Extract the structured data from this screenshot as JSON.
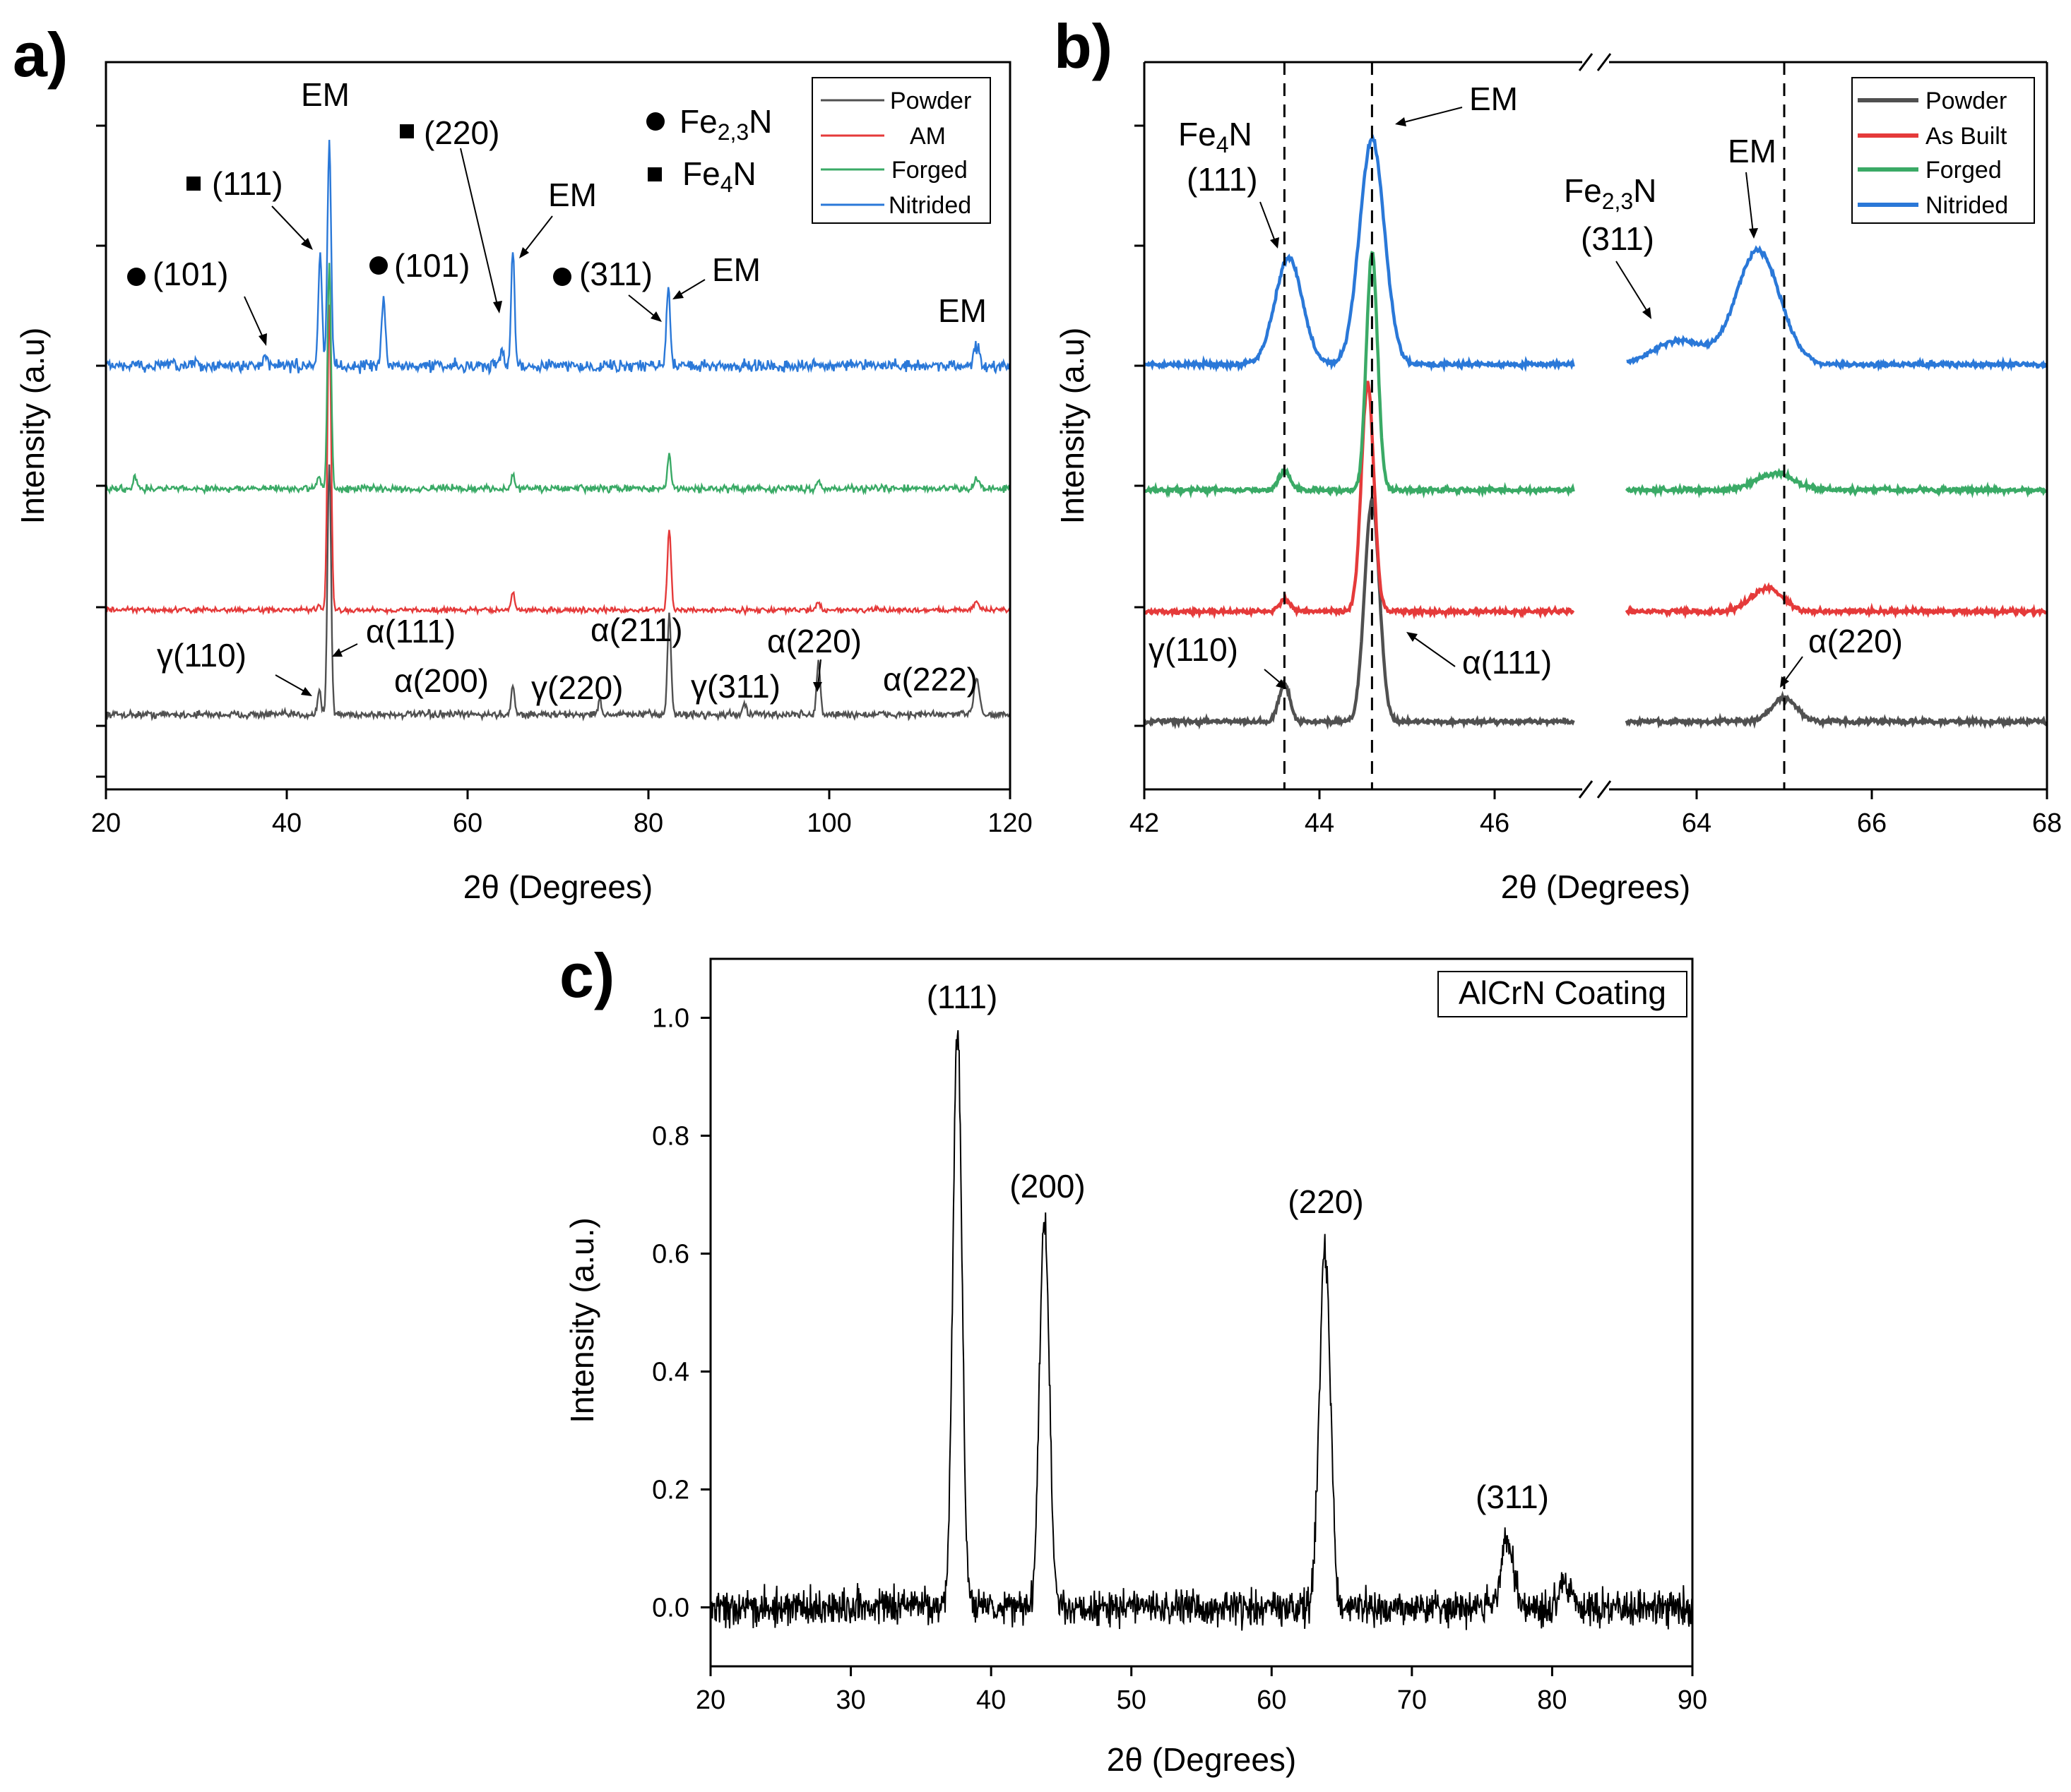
{
  "figure": {
    "panels": [
      "a)",
      "b)",
      "c)"
    ]
  },
  "chart_data": [
    {
      "id": "a",
      "type": "line",
      "panel_label": "a)",
      "title": "",
      "xlabel": "2θ (Degrees)",
      "ylabel": "Intensity (a.u)",
      "xlim": [
        20,
        120
      ],
      "xticks": [
        20,
        40,
        60,
        80,
        100,
        120
      ],
      "legend": {
        "placement": "top-right",
        "entries": [
          "Powder",
          "AM",
          "Forged",
          "Nitrided"
        ]
      },
      "series": [
        {
          "name": "Powder",
          "color": "#505050",
          "offset": 0,
          "peaks": [
            [
              43.6,
              0.1
            ],
            [
              44.7,
              1.05
            ],
            [
              65.0,
              0.12
            ],
            [
              74.6,
              0.06
            ],
            [
              82.3,
              0.42
            ],
            [
              90.6,
              0.05
            ],
            [
              98.8,
              0.22
            ],
            [
              116.3,
              0.15
            ]
          ]
        },
        {
          "name": "AM",
          "color": "#e53a3a",
          "offset": 0.5,
          "peaks": [
            [
              43.6,
              0.03
            ],
            [
              44.7,
              1.8
            ],
            [
              65.0,
              0.1
            ],
            [
              82.3,
              0.48
            ],
            [
              98.8,
              0.05
            ],
            [
              116.3,
              0.05
            ]
          ]
        },
        {
          "name": "Forged",
          "color": "#3aaa66",
          "offset": 1.0,
          "peaks": [
            [
              23.2,
              0.06
            ],
            [
              43.6,
              0.05
            ],
            [
              44.7,
              1.0
            ],
            [
              65.0,
              0.06
            ],
            [
              82.3,
              0.14
            ],
            [
              98.8,
              0.04
            ],
            [
              116.3,
              0.04
            ]
          ]
        },
        {
          "name": "Nitrided",
          "color": "#2a78d8",
          "offset": 1.5,
          "peaks": [
            [
              37.6,
              0.06
            ],
            [
              43.7,
              0.48
            ],
            [
              44.7,
              0.98
            ],
            [
              50.7,
              0.3
            ],
            [
              63.8,
              0.06
            ],
            [
              65.0,
              0.5
            ],
            [
              82.2,
              0.35
            ],
            [
              116.3,
              0.08
            ]
          ]
        }
      ],
      "annotations": {
        "em_top": "EM",
        "em_65": "EM",
        "em_82": "EM",
        "em_116": "EM",
        "fe23n_101_a": "(101)",
        "fe4n_111": "(111)",
        "fe23n_101_b": "(101)",
        "fe4n_220": "(220)",
        "fe23n_311": "(311)",
        "key_fe23n_base": "Fe",
        "key_fe23n_sub": "2,3",
        "key_fe23n_tail": "N",
        "key_fe4n_base": "Fe",
        "key_fe4n_sub": "4",
        "key_fe4n_tail": "N",
        "g110": "γ(110)",
        "a111": "α(111)",
        "a200": "α(200)",
        "g220": "γ(220)",
        "a211": "α(211)",
        "g311": "γ(311)",
        "a220": "α(220)",
        "a222": "α(222)"
      }
    },
    {
      "id": "b",
      "type": "line",
      "panel_label": "b)",
      "title": "",
      "xlabel": "2θ (Degrees)",
      "ylabel": "Intensity (a.u)",
      "x_segments": [
        [
          42,
          47
        ],
        [
          63,
          68
        ]
      ],
      "xticks": [
        42,
        44,
        46,
        64,
        66,
        68
      ],
      "reference_lines_x": [
        43.6,
        44.6,
        65.0
      ],
      "legend": {
        "placement": "top-right",
        "entries": [
          "Powder",
          "As Built",
          "Forged",
          "Nitrided"
        ]
      },
      "series": [
        {
          "name": "Powder",
          "color": "#505050",
          "offset": 0,
          "peaks": [
            [
              43.6,
              0.16,
              0.09
            ],
            [
              44.6,
              0.95,
              0.12
            ],
            [
              65.0,
              0.1,
              0.2
            ]
          ]
        },
        {
          "name": "As Built",
          "color": "#e53a3a",
          "offset": 0.5,
          "peaks": [
            [
              43.6,
              0.05,
              0.09
            ],
            [
              44.55,
              0.98,
              0.1
            ],
            [
              64.8,
              0.1,
              0.25
            ]
          ]
        },
        {
          "name": "Forged",
          "color": "#3aaa66",
          "offset": 1.0,
          "peaks": [
            [
              43.6,
              0.08,
              0.09
            ],
            [
              44.6,
              0.99,
              0.09
            ],
            [
              64.9,
              0.07,
              0.3
            ]
          ]
        },
        {
          "name": "Nitrided",
          "color": "#2a78d8",
          "offset": 1.5,
          "peaks": [
            [
              43.65,
              0.45,
              0.22
            ],
            [
              44.6,
              0.95,
              0.2
            ],
            [
              63.8,
              0.1,
              0.4
            ],
            [
              64.7,
              0.48,
              0.35
            ]
          ]
        }
      ],
      "annotations": {
        "fe4n_base": "Fe",
        "fe4n_sub": "4",
        "fe4n_tail": "N",
        "fe4n_hkl": "(111)",
        "em_44": "EM",
        "em_65": "EM",
        "fe23n_base": "Fe",
        "fe23n_sub": "2,3",
        "fe23n_tail": "N",
        "fe23n_hkl": "(311)",
        "g110": "γ(110)",
        "a111": "α(111)",
        "a220": "α(220)"
      }
    },
    {
      "id": "c",
      "type": "line",
      "panel_label": "c)",
      "title": "",
      "xlabel": "2θ (Degrees)",
      "ylabel": "Intensity (a.u.)",
      "xlim": [
        20,
        90
      ],
      "ylim": [
        -0.1,
        1.1
      ],
      "xticks": [
        20,
        30,
        40,
        50,
        60,
        70,
        80,
        90
      ],
      "yticks": [
        0.0,
        0.2,
        0.4,
        0.6,
        0.8,
        1.0
      ],
      "ytick_labels": [
        "0.0",
        "0.2",
        "0.4",
        "0.6",
        "0.8",
        "1.0"
      ],
      "legend": {
        "placement": "top-right",
        "entries": [
          "AlCrN Coating"
        ]
      },
      "series": [
        {
          "name": "AlCrN Coating",
          "color": "#000000",
          "peaks": [
            [
              37.6,
              0.99,
              0.45
            ],
            [
              43.8,
              0.65,
              0.5
            ],
            [
              63.8,
              0.61,
              0.55
            ],
            [
              76.8,
              0.12,
              0.6
            ],
            [
              81.0,
              0.04,
              0.6
            ]
          ]
        }
      ],
      "annotations": {
        "p111": "(111)",
        "p200": "(200)",
        "p220": "(220)",
        "p311": "(311)"
      }
    }
  ]
}
